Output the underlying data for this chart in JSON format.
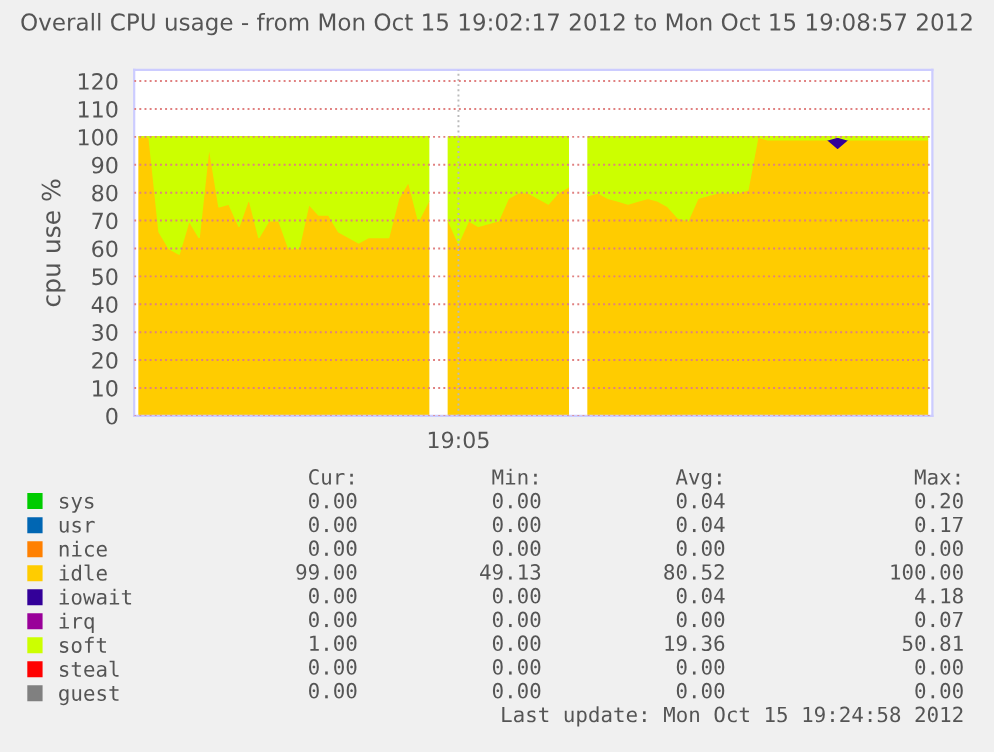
{
  "chart_data": {
    "type": "area",
    "stacked": true,
    "title": "Overall CPU usage - from Mon Oct 15 19:02:17 2012 to Mon Oct 15 19:08:57 2012",
    "ylabel": "cpu use %",
    "categories": [
      null,
      null,
      null,
      null,
      null,
      null,
      null,
      null,
      null,
      null,
      null,
      null,
      null,
      null,
      null,
      null,
      null,
      null,
      null,
      null,
      null,
      null,
      null,
      null,
      null,
      null,
      null,
      null,
      null,
      null,
      null,
      null,
      "19:05",
      null,
      null,
      null,
      null,
      null,
      null,
      null,
      null,
      null,
      null,
      null,
      null,
      null,
      null,
      null,
      null,
      null,
      null,
      null,
      null,
      null,
      null,
      null,
      null,
      null,
      null,
      null,
      null,
      null,
      null,
      null,
      null,
      null,
      null,
      null,
      null,
      null,
      null,
      null,
      null,
      null,
      null,
      null,
      null,
      null,
      null,
      null
    ],
    "ylim": [
      0,
      124
    ],
    "yticks": [
      0,
      10,
      20,
      30,
      40,
      50,
      60,
      70,
      80,
      90,
      100,
      110,
      120
    ],
    "grid": true,
    "legend": "bottom",
    "series": [
      {
        "name": "sys",
        "color": "#00cc00",
        "values": [
          null,
          null,
          null,
          null,
          null,
          null,
          null,
          null,
          null,
          null,
          null,
          null,
          null,
          null,
          null,
          null,
          null,
          null,
          null,
          null,
          null,
          null,
          null,
          null,
          null,
          null,
          null,
          null,
          null,
          null,
          null,
          null,
          null,
          null,
          null,
          null,
          null,
          null,
          null,
          null,
          null,
          null,
          null,
          null,
          null,
          null,
          null,
          null,
          null,
          null,
          null,
          null,
          null,
          null,
          null,
          null,
          null,
          null,
          null,
          null,
          null,
          null,
          null,
          null,
          null,
          null,
          null,
          null,
          null,
          null,
          null,
          null,
          null,
          null,
          null,
          null,
          null,
          null,
          null,
          null
        ]
      },
      {
        "name": "usr",
        "color": "#0066b3",
        "values": [
          null,
          null,
          null,
          null,
          null,
          null,
          null,
          null,
          null,
          null,
          null,
          null,
          null,
          null,
          null,
          null,
          null,
          null,
          null,
          null,
          null,
          null,
          null,
          null,
          null,
          null,
          null,
          null,
          null,
          null,
          null,
          null,
          null,
          null,
          null,
          null,
          null,
          null,
          null,
          null,
          null,
          null,
          null,
          null,
          null,
          null,
          null,
          null,
          null,
          null,
          null,
          null,
          null,
          null,
          null,
          null,
          null,
          null,
          null,
          null,
          null,
          null,
          null,
          null,
          null,
          null,
          null,
          null,
          null,
          null,
          null,
          null,
          null,
          null,
          null,
          null,
          null,
          null,
          null,
          null
        ]
      },
      {
        "name": "nice",
        "color": "#ff8000",
        "values": [
          null,
          null,
          null,
          null,
          null,
          null,
          null,
          null,
          null,
          null,
          null,
          null,
          null,
          null,
          null,
          null,
          null,
          null,
          null,
          null,
          null,
          null,
          null,
          null,
          null,
          null,
          null,
          null,
          null,
          null,
          null,
          null,
          null,
          null,
          null,
          null,
          null,
          null,
          null,
          null,
          null,
          null,
          null,
          null,
          null,
          null,
          null,
          null,
          null,
          null,
          null,
          null,
          null,
          null,
          null,
          null,
          null,
          null,
          null,
          null,
          null,
          null,
          null,
          null,
          null,
          null,
          null,
          null,
          null,
          null,
          null,
          null,
          null,
          null,
          null,
          null,
          null,
          null,
          null,
          null
        ]
      },
      {
        "name": "idle",
        "color": "#ffcc00",
        "values": [
          100,
          100,
          66,
          60,
          58,
          70,
          64,
          97,
          75,
          76,
          68,
          78,
          64,
          70,
          70,
          60,
          60,
          76,
          72,
          72,
          66,
          64,
          62,
          64,
          64,
          64,
          78,
          84,
          70,
          77,
          null,
          70,
          62,
          70,
          68,
          69,
          70,
          78,
          80,
          80,
          78,
          76,
          80,
          82,
          null,
          79,
          80,
          78,
          77,
          76,
          77,
          78,
          77,
          75,
          71,
          70,
          78,
          79,
          80,
          80,
          80,
          81,
          100,
          99,
          99,
          99,
          99,
          99,
          99,
          99,
          96,
          99,
          99,
          99,
          99,
          99,
          99,
          99,
          99,
          99
        ]
      },
      {
        "name": "iowait",
        "color": "#330099",
        "values": [
          null,
          null,
          null,
          null,
          null,
          null,
          null,
          null,
          null,
          null,
          null,
          null,
          null,
          null,
          null,
          null,
          null,
          null,
          null,
          null,
          null,
          null,
          null,
          null,
          null,
          null,
          null,
          null,
          null,
          null,
          null,
          null,
          null,
          null,
          null,
          null,
          null,
          null,
          null,
          null,
          null,
          null,
          null,
          null,
          null,
          null,
          null,
          null,
          null,
          null,
          null,
          null,
          null,
          null,
          null,
          null,
          null,
          null,
          null,
          null,
          null,
          null,
          null,
          null,
          null,
          null,
          null,
          null,
          null,
          0,
          4,
          0,
          null,
          null,
          null,
          null,
          null,
          null,
          null,
          null
        ]
      },
      {
        "name": "irq",
        "color": "#990099",
        "values": [
          null,
          null,
          null,
          null,
          null,
          null,
          null,
          null,
          null,
          null,
          null,
          null,
          null,
          null,
          null,
          null,
          null,
          null,
          null,
          null,
          null,
          null,
          null,
          null,
          null,
          null,
          null,
          null,
          null,
          null,
          null,
          null,
          null,
          null,
          null,
          null,
          null,
          null,
          null,
          null,
          null,
          null,
          null,
          null,
          null,
          null,
          null,
          null,
          null,
          null,
          null,
          null,
          null,
          null,
          null,
          null,
          null,
          null,
          null,
          null,
          null,
          null,
          null,
          null,
          null,
          null,
          null,
          null,
          null,
          null,
          null,
          null,
          null,
          null,
          null,
          null,
          null,
          null,
          null,
          null
        ]
      },
      {
        "name": "soft",
        "color": "#ccff00",
        "values": [
          0,
          0,
          34,
          40,
          42,
          30,
          36,
          3,
          25,
          24,
          32,
          22,
          36,
          30,
          30,
          40,
          40,
          24,
          28,
          28,
          34,
          36,
          38,
          36,
          36,
          36,
          22,
          16,
          30,
          23,
          null,
          30,
          38,
          30,
          32,
          31,
          30,
          22,
          20,
          20,
          22,
          24,
          20,
          18,
          null,
          21,
          20,
          22,
          23,
          24,
          23,
          22,
          23,
          25,
          29,
          30,
          22,
          21,
          20,
          20,
          20,
          19,
          0,
          1,
          1,
          1,
          1,
          1,
          1,
          1,
          0,
          1,
          1,
          1,
          1,
          1,
          1,
          1,
          1,
          1
        ]
      },
      {
        "name": "steal",
        "color": "#ff0000",
        "values": [
          null,
          null,
          null,
          null,
          null,
          null,
          null,
          null,
          null,
          null,
          null,
          null,
          null,
          null,
          null,
          null,
          null,
          null,
          null,
          null,
          null,
          null,
          null,
          null,
          null,
          null,
          null,
          null,
          null,
          null,
          null,
          null,
          null,
          null,
          null,
          null,
          null,
          null,
          null,
          null,
          null,
          null,
          null,
          null,
          null,
          null,
          null,
          null,
          null,
          null,
          null,
          null,
          null,
          null,
          null,
          null,
          null,
          null,
          null,
          null,
          null,
          null,
          null,
          null,
          null,
          null,
          null,
          null,
          null,
          null,
          null,
          null,
          null,
          null,
          null,
          null,
          null,
          null,
          null,
          null
        ]
      },
      {
        "name": "guest",
        "color": "#808080",
        "values": [
          null,
          null,
          null,
          null,
          null,
          null,
          null,
          null,
          null,
          null,
          null,
          null,
          null,
          null,
          null,
          null,
          null,
          null,
          null,
          null,
          null,
          null,
          null,
          null,
          null,
          null,
          null,
          null,
          null,
          null,
          null,
          null,
          null,
          null,
          null,
          null,
          null,
          null,
          null,
          null,
          null,
          null,
          null,
          null,
          null,
          null,
          null,
          null,
          null,
          null,
          null,
          null,
          null,
          null,
          null,
          null,
          null,
          null,
          null,
          null,
          null,
          null,
          null,
          null,
          null,
          null,
          null,
          null,
          null,
          null,
          null,
          null,
          null,
          null,
          null,
          null,
          null,
          null,
          null,
          null
        ]
      }
    ],
    "annotations": [
      "Cur:",
      "Min:",
      "Avg:",
      "Max:",
      "0.00",
      "0.00",
      "0.04",
      "0.20",
      "0.00",
      "0.00",
      "0.04",
      "0.17",
      "0.00",
      "0.00",
      "0.00",
      "0.00",
      "99.00",
      "49.13",
      "80.52",
      "100.00",
      "0.00",
      "0.00",
      "0.04",
      "4.18",
      "0.00",
      "0.00",
      "0.00",
      "0.07",
      "1.00",
      "0.00",
      "19.36",
      "50.81",
      "0.00",
      "0.00",
      "0.00",
      "0.00",
      "0.00",
      "0.00",
      "0.00",
      "0.00",
      "Last update: Mon Oct 15 19:24:58 2012"
    ]
  }
}
